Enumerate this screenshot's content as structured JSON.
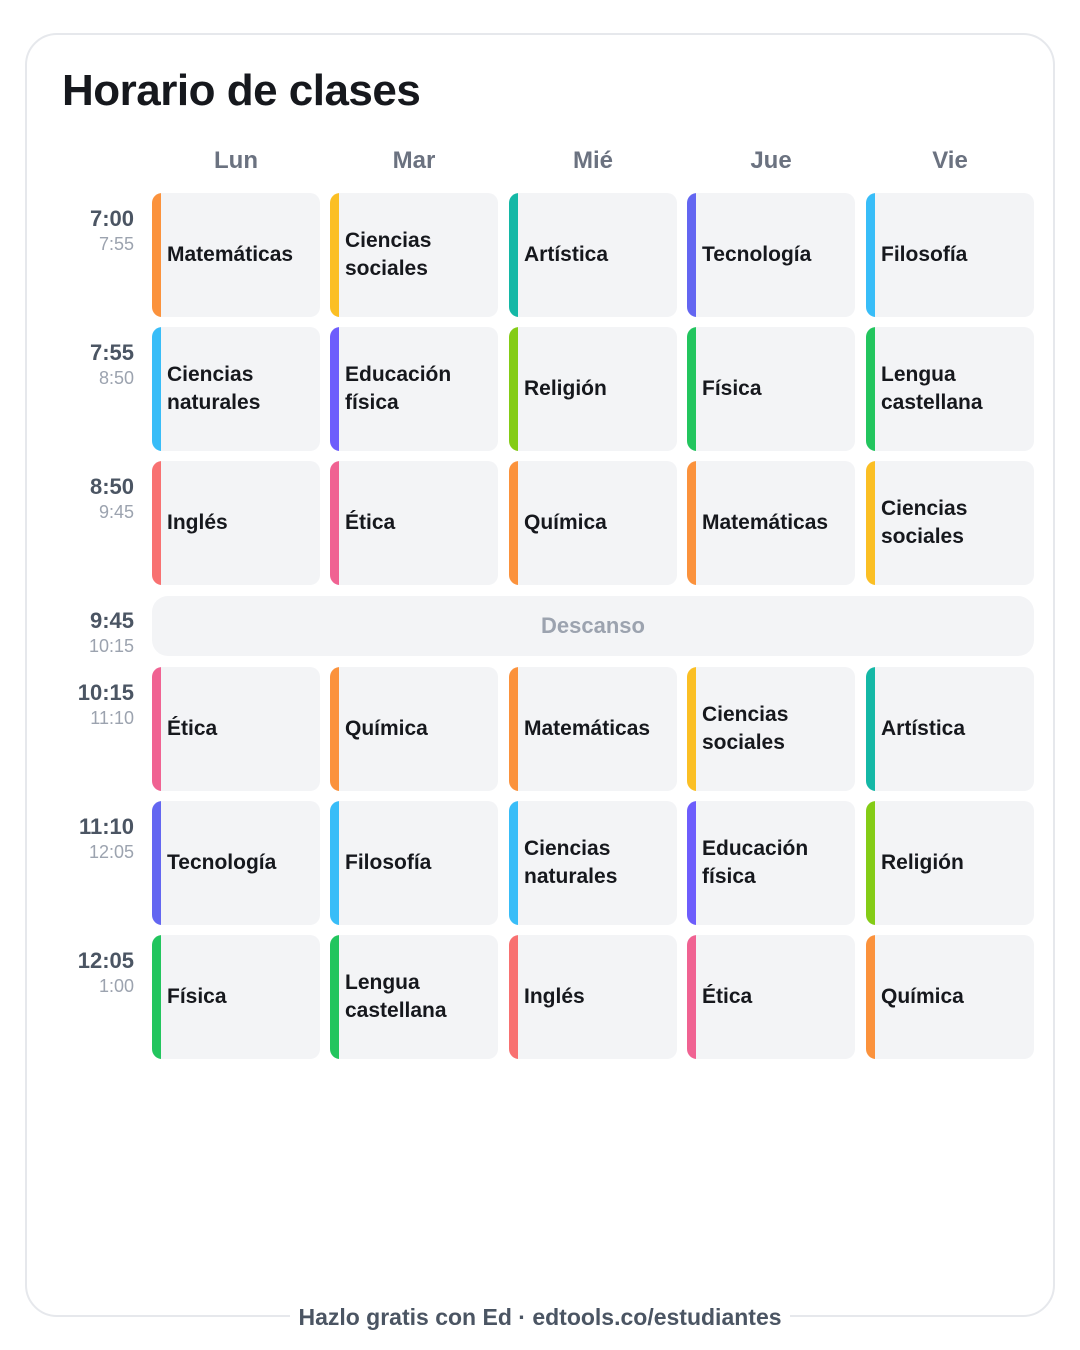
{
  "title": "Horario de clases",
  "days": [
    "Lun",
    "Mar",
    "Mié",
    "Jue",
    "Vie"
  ],
  "colors": {
    "matematicas": "#fb923c",
    "ciencias_sociales": "#fbbf24",
    "artistica": "#14b8a6",
    "tecnologia": "#6366f1",
    "filosofia": "#38bdf8",
    "ciencias_naturales": "#38bdf8",
    "educacion_fisica": "#6d5dfc",
    "religion": "#84cc16",
    "fisica": "#22c55e",
    "lengua_castellana": "#22c55e",
    "ingles": "#f87171",
    "etica": "#f06292",
    "quimica": "#fb923c"
  },
  "rows": [
    {
      "start": "7:00",
      "end": "7:55",
      "cells": [
        {
          "label": "Matemáticas",
          "color": "#fb923c"
        },
        {
          "label": "Ciencias sociales",
          "color": "#fbbf24"
        },
        {
          "label": "Artística",
          "color": "#14b8a6"
        },
        {
          "label": "Tecnología",
          "color": "#6366f1"
        },
        {
          "label": "Filosofía",
          "color": "#38bdf8"
        }
      ]
    },
    {
      "start": "7:55",
      "end": "8:50",
      "cells": [
        {
          "label": "Ciencias naturales",
          "color": "#38bdf8"
        },
        {
          "label": "Educación física",
          "color": "#6d5dfc"
        },
        {
          "label": "Religión",
          "color": "#84cc16"
        },
        {
          "label": "Física",
          "color": "#22c55e"
        },
        {
          "label": "Lengua castellana",
          "color": "#22c55e"
        }
      ]
    },
    {
      "start": "8:50",
      "end": "9:45",
      "cells": [
        {
          "label": "Inglés",
          "color": "#f87171"
        },
        {
          "label": "Ética",
          "color": "#f06292"
        },
        {
          "label": "Química",
          "color": "#fb923c"
        },
        {
          "label": "Matemáticas",
          "color": "#fb923c"
        },
        {
          "label": "Ciencias sociales",
          "color": "#fbbf24"
        }
      ]
    },
    {
      "start": "10:15",
      "end": "11:10",
      "cells": [
        {
          "label": "Ética",
          "color": "#f06292"
        },
        {
          "label": "Química",
          "color": "#fb923c"
        },
        {
          "label": "Matemáticas",
          "color": "#fb923c"
        },
        {
          "label": "Ciencias sociales",
          "color": "#fbbf24"
        },
        {
          "label": "Artística",
          "color": "#14b8a6"
        }
      ]
    },
    {
      "start": "11:10",
      "end": "12:05",
      "cells": [
        {
          "label": "Tecnología",
          "color": "#6366f1"
        },
        {
          "label": "Filosofía",
          "color": "#38bdf8"
        },
        {
          "label": "Ciencias naturales",
          "color": "#38bdf8"
        },
        {
          "label": "Educación física",
          "color": "#6d5dfc"
        },
        {
          "label": "Religión",
          "color": "#84cc16"
        }
      ]
    },
    {
      "start": "12:05",
      "end": "1:00",
      "cells": [
        {
          "label": "Física",
          "color": "#22c55e"
        },
        {
          "label": "Lengua castellana",
          "color": "#22c55e"
        },
        {
          "label": "Inglés",
          "color": "#f87171"
        },
        {
          "label": "Ética",
          "color": "#f06292"
        },
        {
          "label": "Química",
          "color": "#fb923c"
        }
      ]
    }
  ],
  "break": {
    "start": "9:45",
    "end": "10:15",
    "label": "Descanso"
  },
  "footer": "Hazlo gratis con Ed · edtools.co/estudiantes"
}
